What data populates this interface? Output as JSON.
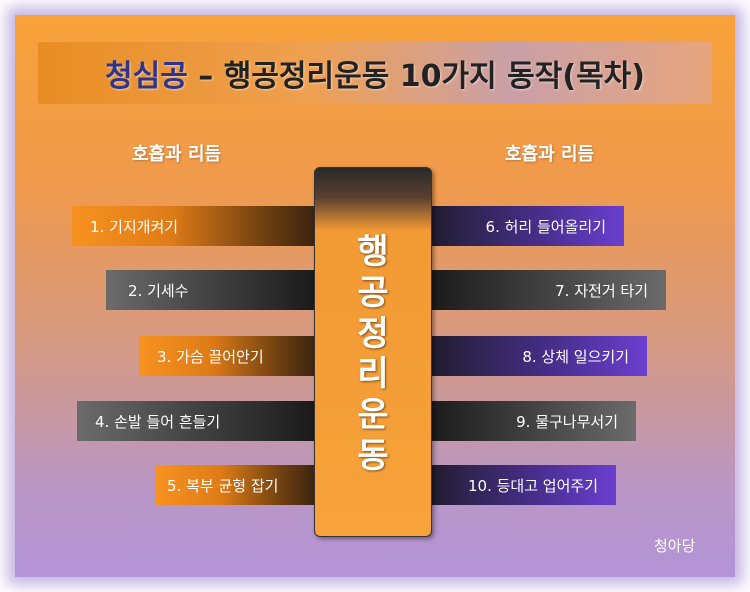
{
  "title": {
    "brand": "청심공",
    "rest": " – 행공정리운동 10가지 동작(목차)"
  },
  "sections": {
    "left_label": "호흡과 리듬",
    "right_label": "호흡과 리듬"
  },
  "center": {
    "chars": [
      "행",
      "공",
      "정",
      "리",
      "운",
      "동"
    ]
  },
  "left_items": [
    {
      "label": "1. 기지개켜기",
      "style": "orange"
    },
    {
      "label": "2. 기세수",
      "style": "gray"
    },
    {
      "label": "3. 가슴 끌어안기",
      "style": "orange"
    },
    {
      "label": "4. 손발 들어 흔들기",
      "style": "gray"
    },
    {
      "label": "5. 복부 균형 잡기",
      "style": "orange"
    }
  ],
  "right_items": [
    {
      "label": "6. 허리 들어올리기",
      "style": "purple"
    },
    {
      "label": "7. 자전거 타기",
      "style": "gray"
    },
    {
      "label": "8. 상체 일으키기",
      "style": "purple"
    },
    {
      "label": "9. 물구나무서기",
      "style": "gray"
    },
    {
      "label": "10. 등대고 업어주기",
      "style": "purple"
    }
  ],
  "signature": "청아당"
}
